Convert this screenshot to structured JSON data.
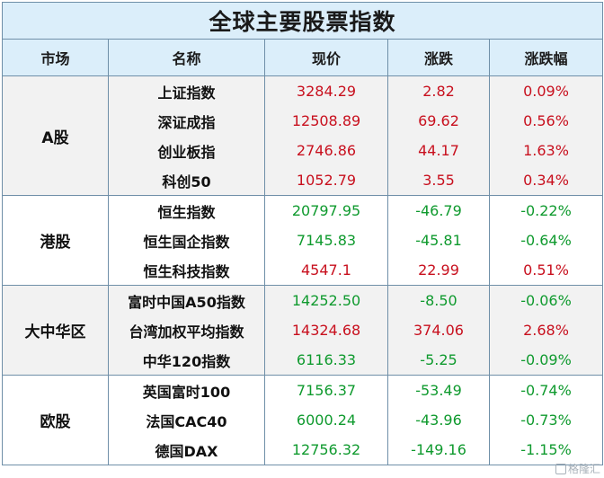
{
  "title": "全球主要股票指数",
  "columns": [
    "市场",
    "名称",
    "现价",
    "涨跌",
    "涨跌幅"
  ],
  "colors": {
    "up": "#c8101e",
    "down": "#0f9a2e",
    "header_bg": "#dbeefa",
    "shade_bg": "#f2f2f2"
  },
  "groups": [
    {
      "market": "A股",
      "rows": [
        {
          "name": "上证指数",
          "price": "3284.29",
          "change": "2.82",
          "pct": "0.09%",
          "dir": "up"
        },
        {
          "name": "深证成指",
          "price": "12508.89",
          "change": "69.62",
          "pct": "0.56%",
          "dir": "up"
        },
        {
          "name": "创业板指",
          "price": "2746.86",
          "change": "44.17",
          "pct": "1.63%",
          "dir": "up"
        },
        {
          "name": "科创50",
          "price": "1052.79",
          "change": "3.55",
          "pct": "0.34%",
          "dir": "up"
        }
      ]
    },
    {
      "market": "港股",
      "rows": [
        {
          "name": "恒生指数",
          "price": "20797.95",
          "change": "-46.79",
          "pct": "-0.22%",
          "dir": "down"
        },
        {
          "name": "恒生国企指数",
          "price": "7145.83",
          "change": "-45.81",
          "pct": "-0.64%",
          "dir": "down"
        },
        {
          "name": "恒生科技指数",
          "price": "4547.1",
          "change": "22.99",
          "pct": "0.51%",
          "dir": "up"
        }
      ]
    },
    {
      "market": "大中华区",
      "rows": [
        {
          "name": "富时中国A50指数",
          "price": "14252.50",
          "change": "-8.50",
          "pct": "-0.06%",
          "dir": "down"
        },
        {
          "name": "台湾加权平均指数",
          "price": "14324.68",
          "change": "374.06",
          "pct": "2.68%",
          "dir": "up"
        },
        {
          "name": "中华120指数",
          "price": "6116.33",
          "change": "-5.25",
          "pct": "-0.09%",
          "dir": "down"
        }
      ]
    },
    {
      "market": "欧股",
      "rows": [
        {
          "name": "英国富时100",
          "price": "7156.37",
          "change": "-53.49",
          "pct": "-0.74%",
          "dir": "down"
        },
        {
          "name": "法国CAC40",
          "price": "6000.24",
          "change": "-43.96",
          "pct": "-0.73%",
          "dir": "down"
        },
        {
          "name": "德国DAX",
          "price": "12756.32",
          "change": "-149.16",
          "pct": "-1.15%",
          "dir": "down"
        }
      ]
    }
  ],
  "watermark": "格隆汇"
}
